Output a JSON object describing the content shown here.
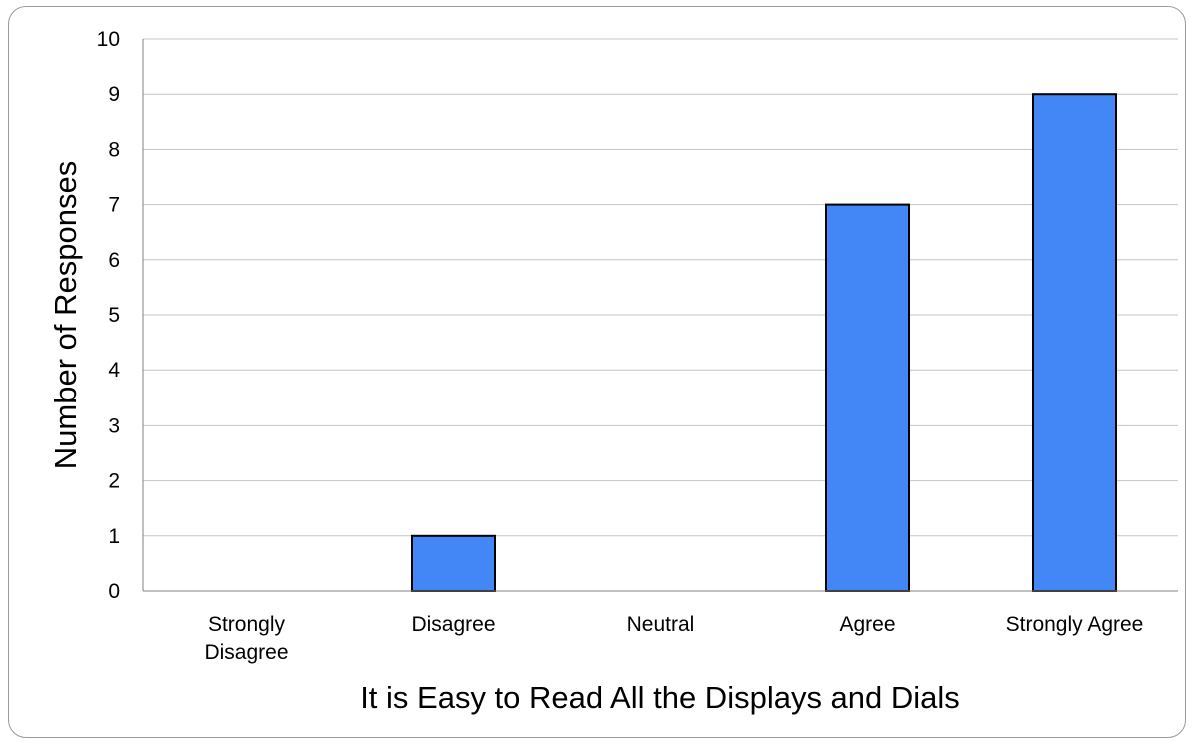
{
  "chart_data": {
    "type": "bar",
    "categories": [
      [
        "Strongly",
        "Disagree"
      ],
      [
        "Disagree"
      ],
      [
        "Neutral"
      ],
      [
        "Agree"
      ],
      [
        "Strongly Agree"
      ]
    ],
    "values": [
      0,
      1,
      0,
      7,
      9
    ],
    "xlabel": "It is Easy to Read All the Displays and Dials",
    "ylabel": "Number of  Responses",
    "ylim": [
      0,
      10
    ],
    "yticks": [
      0,
      1,
      2,
      3,
      4,
      5,
      6,
      7,
      8,
      9,
      10
    ],
    "grid": true,
    "legend": "none",
    "bar_color": "#4287f5"
  }
}
